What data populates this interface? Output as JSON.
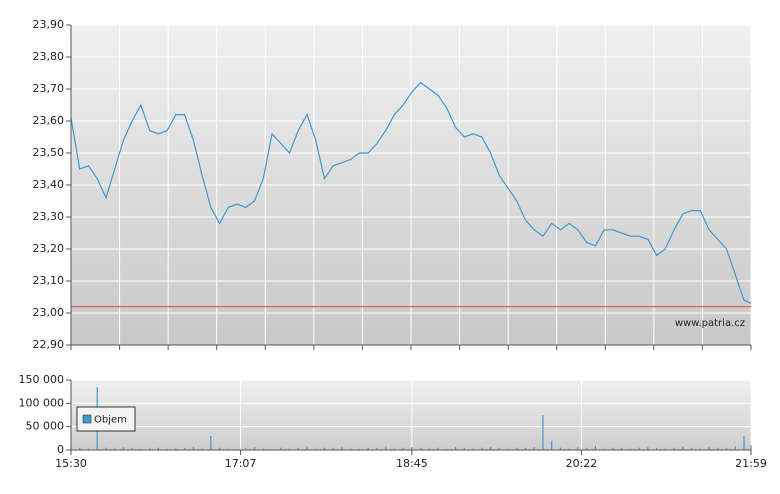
{
  "chart_data": [
    {
      "type": "line",
      "color": "#3d9ad1",
      "x": [
        "15:30",
        "15:35",
        "15:40",
        "15:45",
        "15:50",
        "15:55",
        "16:00",
        "16:05",
        "16:10",
        "16:15",
        "16:20",
        "16:25",
        "16:30",
        "16:35",
        "16:40",
        "16:45",
        "16:50",
        "16:55",
        "17:00",
        "17:05",
        "17:10",
        "17:15",
        "17:20",
        "17:25",
        "17:30",
        "17:35",
        "17:40",
        "17:45",
        "17:50",
        "17:55",
        "18:00",
        "18:05",
        "18:10",
        "18:15",
        "18:20",
        "18:25",
        "18:30",
        "18:35",
        "18:40",
        "18:45",
        "18:50",
        "18:55",
        "19:00",
        "19:05",
        "19:10",
        "19:15",
        "19:20",
        "19:25",
        "19:30",
        "19:35",
        "19:40",
        "19:45",
        "19:50",
        "19:55",
        "20:00",
        "20:05",
        "20:10",
        "20:15",
        "20:20",
        "20:25",
        "20:30",
        "20:35",
        "20:40",
        "20:45",
        "20:50",
        "20:55",
        "21:00",
        "21:05",
        "21:10",
        "21:15",
        "21:20",
        "21:25",
        "21:30",
        "21:35",
        "21:40",
        "21:45",
        "21:50",
        "21:55",
        "21:59"
      ],
      "values": [
        23.61,
        23.45,
        23.46,
        23.42,
        23.36,
        23.45,
        23.54,
        23.6,
        23.65,
        23.57,
        23.56,
        23.57,
        23.62,
        23.62,
        23.54,
        23.43,
        23.33,
        23.28,
        23.33,
        23.34,
        23.33,
        23.35,
        23.42,
        23.56,
        23.53,
        23.5,
        23.57,
        23.62,
        23.54,
        23.42,
        23.46,
        23.47,
        23.48,
        23.5,
        23.5,
        23.53,
        23.57,
        23.62,
        23.65,
        23.69,
        23.72,
        23.7,
        23.68,
        23.64,
        23.58,
        23.55,
        23.56,
        23.55,
        23.5,
        23.43,
        23.39,
        23.35,
        23.29,
        23.26,
        23.24,
        23.28,
        23.26,
        23.28,
        23.26,
        23.22,
        23.21,
        23.26,
        23.26,
        23.25,
        23.24,
        23.24,
        23.23,
        23.18,
        23.2,
        23.26,
        23.31,
        23.32,
        23.32,
        23.26,
        23.23,
        23.2,
        23.12,
        23.04,
        23.03
      ],
      "xlim": [
        "15:30",
        "21:59"
      ],
      "ylim": [
        22.9,
        23.9
      ],
      "yticks": [
        {
          "value": 22.9,
          "label": "22,90"
        },
        {
          "value": 23.0,
          "label": "23,00"
        },
        {
          "value": 23.1,
          "label": "23,10"
        },
        {
          "value": 23.2,
          "label": "23,20"
        },
        {
          "value": 23.3,
          "label": "23,30"
        },
        {
          "value": 23.4,
          "label": "23,40"
        },
        {
          "value": 23.5,
          "label": "23,50"
        },
        {
          "value": 23.6,
          "label": "23,60"
        },
        {
          "value": 23.7,
          "label": "23,70"
        },
        {
          "value": 23.8,
          "label": "23,80"
        },
        {
          "value": 23.9,
          "label": "23,90"
        }
      ],
      "reference_line": 23.02,
      "reference_color": "#e06060",
      "annotation": "www.patria.cz",
      "grid": true
    },
    {
      "type": "bar",
      "x": [
        "15:30",
        "15:35",
        "15:40",
        "15:45",
        "15:50",
        "15:55",
        "16:00",
        "16:05",
        "16:10",
        "16:15",
        "16:20",
        "16:25",
        "16:30",
        "16:35",
        "16:40",
        "16:45",
        "16:50",
        "16:55",
        "17:00",
        "17:05",
        "17:10",
        "17:15",
        "17:20",
        "17:25",
        "17:30",
        "17:35",
        "17:40",
        "17:45",
        "17:50",
        "17:55",
        "18:00",
        "18:05",
        "18:10",
        "18:15",
        "18:20",
        "18:25",
        "18:30",
        "18:35",
        "18:40",
        "18:45",
        "18:50",
        "18:55",
        "19:00",
        "19:05",
        "19:10",
        "19:15",
        "19:20",
        "19:25",
        "19:30",
        "19:35",
        "19:40",
        "19:45",
        "19:50",
        "19:55",
        "20:00",
        "20:05",
        "20:10",
        "20:15",
        "20:20",
        "20:25",
        "20:30",
        "20:35",
        "20:40",
        "20:45",
        "20:50",
        "20:55",
        "21:00",
        "21:05",
        "21:10",
        "21:15",
        "21:20",
        "21:25",
        "21:30",
        "21:35",
        "21:40",
        "21:45",
        "21:50",
        "21:55",
        "21:59"
      ],
      "series": [
        {
          "name": "Objem",
          "color": "#3d9ad1",
          "values": [
            8000,
            4000,
            3000,
            135000,
            5000,
            3000,
            6000,
            4000,
            2000,
            3000,
            5000,
            2000,
            3000,
            4000,
            7000,
            3000,
            30000,
            5000,
            3000,
            2000,
            4000,
            6000,
            3000,
            2000,
            5000,
            3000,
            4000,
            8000,
            3000,
            5000,
            4000,
            6000,
            3000,
            2000,
            5000,
            4000,
            7000,
            3000,
            5000,
            6000,
            4000,
            3000,
            5000,
            2000,
            6000,
            4000,
            3000,
            5000,
            6000,
            4000,
            3000,
            5000,
            4000,
            6000,
            75000,
            20000,
            5000,
            3000,
            6000,
            4000,
            8000,
            3000,
            5000,
            4000,
            3000,
            5000,
            6000,
            4000,
            3000,
            5000,
            7000,
            4000,
            3000,
            6000,
            5000,
            4000,
            8000,
            30000,
            10000
          ]
        }
      ],
      "xlim": [
        "15:30",
        "21:59"
      ],
      "xticks": [
        "15:30",
        "17:07",
        "18:45",
        "20:22",
        "21:59"
      ],
      "ylim": [
        0,
        150000
      ],
      "yticks": [
        0,
        {
          "value": 50000,
          "label": "50 000"
        },
        {
          "value": 100000,
          "label": "100 000"
        },
        {
          "value": 150000,
          "label": "150 000"
        }
      ],
      "legend": "bottom-left",
      "grid": true
    }
  ]
}
